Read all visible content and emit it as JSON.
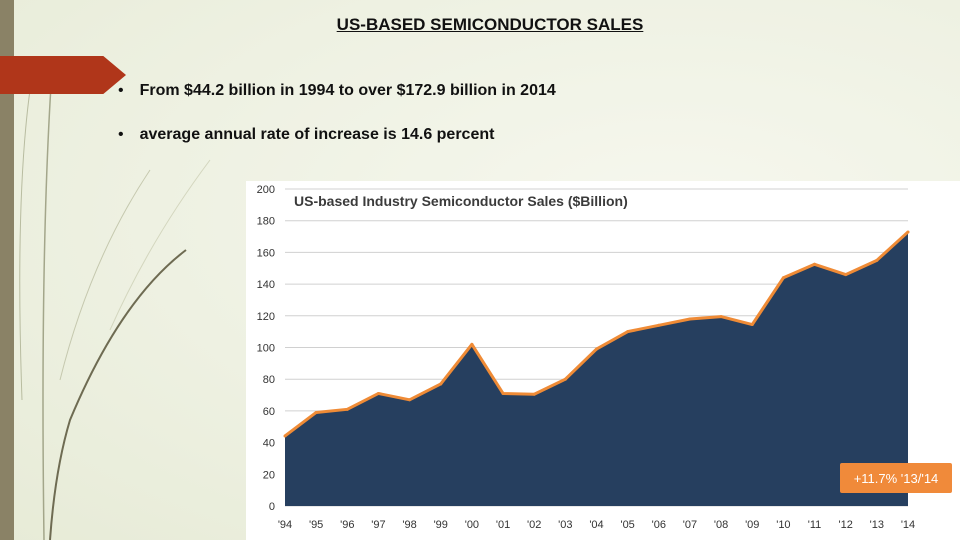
{
  "slide": {
    "title": "US-BASED SEMICONDUCTOR SALES",
    "bullets": [
      "From $44.2 billion in 1994 to over $172.9 billion in 2014",
      "average annual rate of increase is 14.6 percent"
    ],
    "bullet_char": "•",
    "colors": {
      "accent": "#b0361a",
      "chart_fill": "#263f5f",
      "chart_line": "#ef8b36",
      "badge": "#f08a3a"
    }
  },
  "chart_data": {
    "type": "area",
    "title": "US-based Industry Semiconductor Sales ($Billion)",
    "xlabel": "",
    "ylabel": "",
    "categories": [
      "'94",
      "'95",
      "'96",
      "'97",
      "'98",
      "'99",
      "'00",
      "'01",
      "'02",
      "'03",
      "'04",
      "'05",
      "'06",
      "'07",
      "'08",
      "'09",
      "'10",
      "'11",
      "'12",
      "'13",
      "'14"
    ],
    "series": [
      {
        "name": "US-based Industry Semiconductor Sales",
        "values": [
          44.2,
          59,
          61,
          71,
          67,
          77,
          102,
          71,
          70.5,
          80,
          99,
          110,
          114,
          118,
          119.5,
          114.5,
          144,
          152.5,
          146,
          155,
          172.9
        ]
      }
    ],
    "ylim": [
      0,
      200
    ],
    "yticks": [
      0,
      20,
      40,
      60,
      80,
      100,
      120,
      140,
      160,
      180,
      200
    ],
    "grid": true,
    "annotation": "+11.7% '13/'14"
  }
}
